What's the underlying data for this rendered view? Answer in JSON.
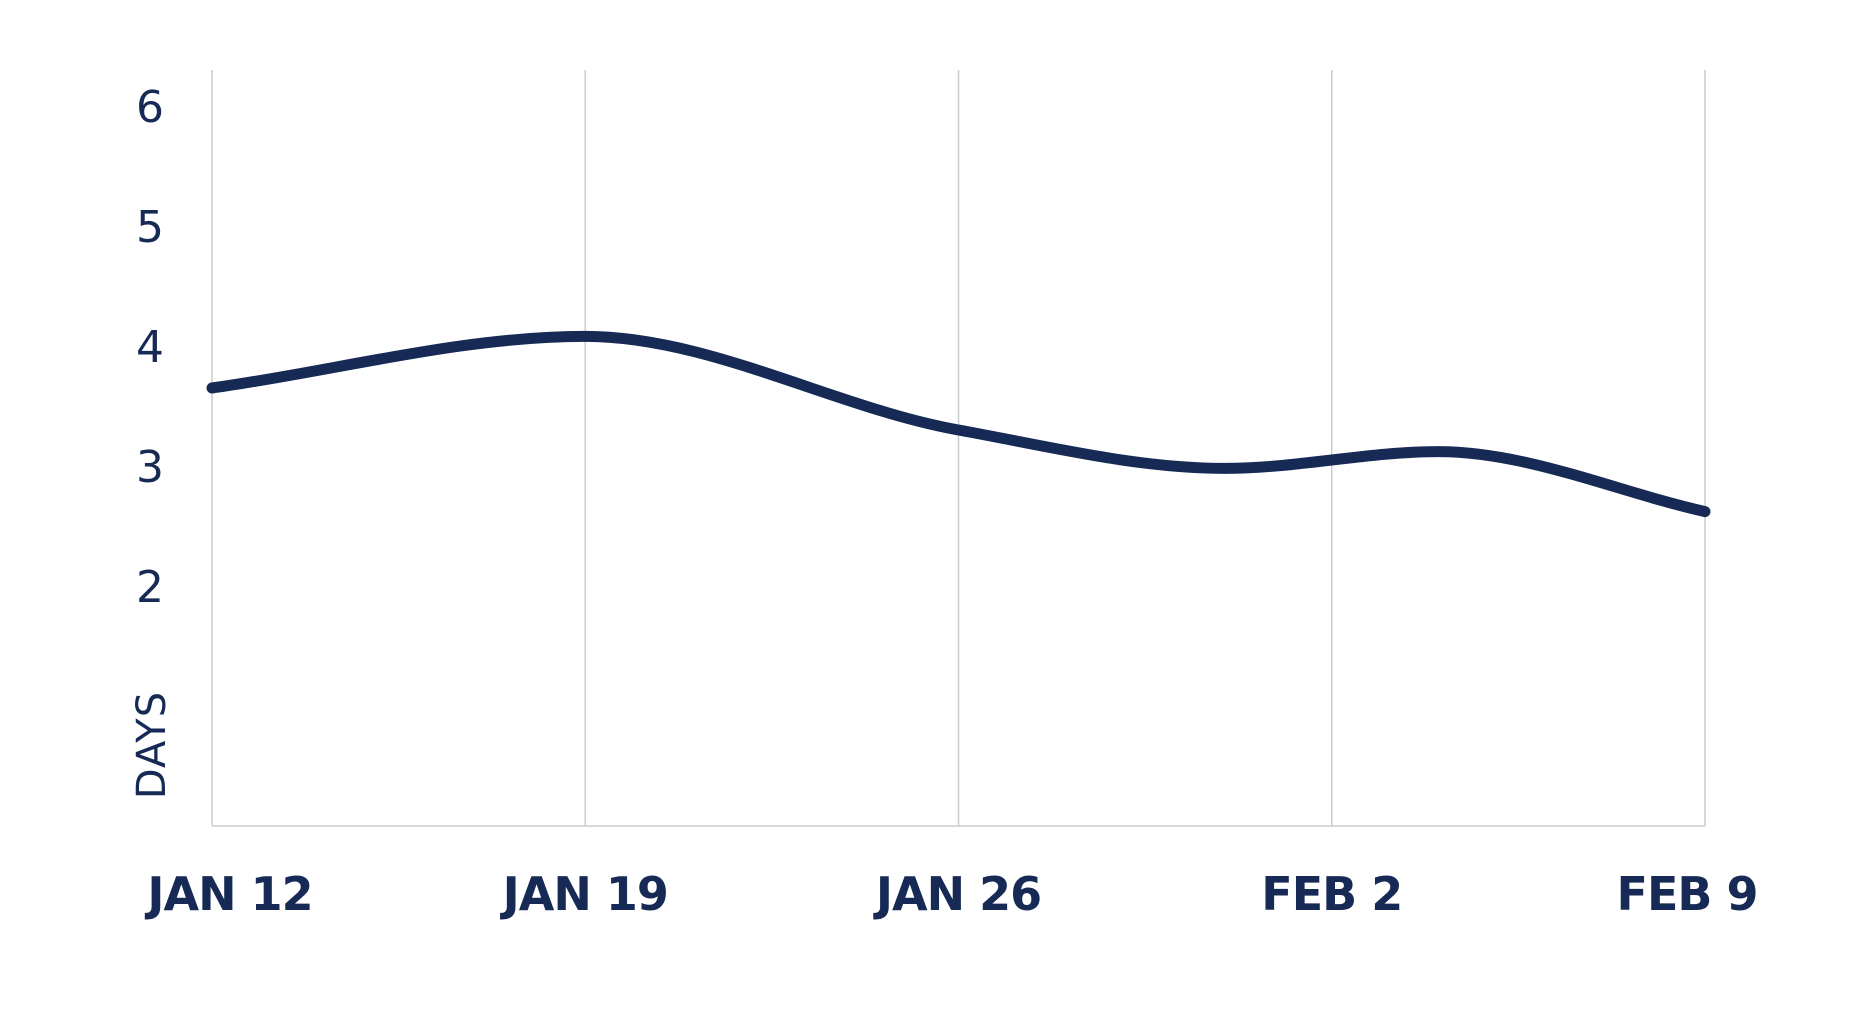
{
  "chart_data": {
    "type": "line",
    "title": "",
    "xlabel": "",
    "ylabel": "DAYS",
    "x_ticks": [
      "JAN 12",
      "JAN 19",
      "JAN 26",
      "FEB 2",
      "FEB 9"
    ],
    "xlim": [
      "JAN 12",
      "FEB 9"
    ],
    "y_ticks": [
      2,
      3,
      4,
      5,
      6
    ],
    "ylim": [
      0,
      6.3
    ],
    "grid": {
      "vertical": true,
      "horizontal": false
    },
    "series": [
      {
        "x": [
          "JAN 12",
          "JAN 19",
          "JAN 26",
          "JAN 31",
          "FEB 4",
          "FEB 9"
        ],
        "y": [
          3.65,
          4.08,
          3.3,
          2.98,
          3.12,
          2.62
        ]
      }
    ],
    "colors": {
      "line": "#172a55",
      "text": "#172a55",
      "grid": "#c9ccd4"
    }
  }
}
